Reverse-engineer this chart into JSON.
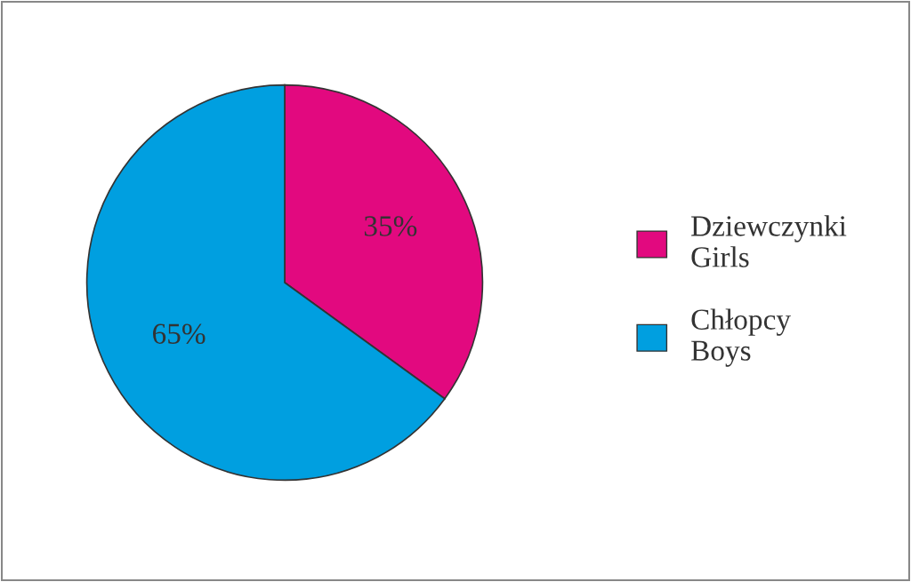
{
  "chart_data": {
    "type": "pie",
    "categories": [
      "Dziewczynki\nGirls",
      "Chłopcy\nBoys"
    ],
    "values": [
      35,
      65
    ],
    "colors": [
      "#e2097f",
      "#009fe0"
    ],
    "value_labels": [
      "35%",
      "65%"
    ],
    "legend": "right"
  }
}
